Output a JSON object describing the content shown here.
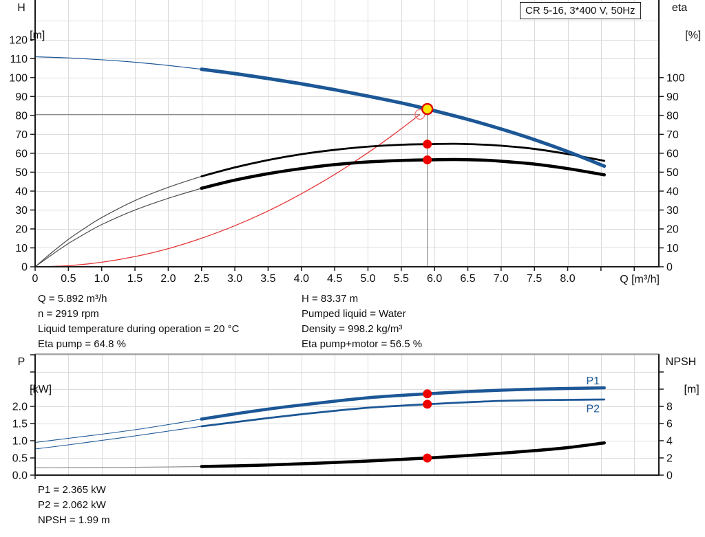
{
  "title_box": "CR 5-16, 3*400 V, 50Hz",
  "info_blocks": {
    "top_left": [
      "Q = 5.892 m³/h",
      "n = 2919 rpm",
      "Liquid temperature during operation = 20 °C",
      "Eta pump = 64.8 %"
    ],
    "top_right": [
      "H = 83.37 m",
      "Pumped liquid = Water",
      "Density = 998.2 kg/m³",
      "Eta pump+motor = 56.5 %"
    ],
    "bottom": [
      "P1 = 2.365 kW",
      "P2 = 2.062 kW",
      "NPSH = 1.99 m"
    ]
  },
  "colors": {
    "curve_blue": "#1c5796",
    "curve_black": "#000000",
    "curve_red": "#e53535",
    "dot_red": "#ee0000",
    "duty_fill": "#ffe600",
    "duty_ring": "#dd0000",
    "requested_ring": "#f47c7c",
    "duty_line": "#8c8c8c",
    "grid": "#dcdcdc",
    "axis": "#1a1a1a",
    "label": "#111111"
  },
  "chart_data": [
    {
      "type": "line",
      "title": "CR 5-16, 3*400 V, 50Hz",
      "x_axis": {
        "label": "Q [m³/h]",
        "range": [
          0,
          9.37
        ],
        "tick_step": 0.5,
        "tick_max": 9.0,
        "tick_labels": [
          "0",
          "0.5",
          "1.0",
          "1.5",
          "2.0",
          "2.5",
          "3.0",
          "3.5",
          "4.0",
          "4.5",
          "5.0",
          "5.5",
          "6.0",
          "6.5",
          "7.0",
          "7.5",
          "8.0"
        ]
      },
      "y_left": {
        "name": "H",
        "unit": "[m]",
        "range": [
          0,
          141
        ],
        "tick_step": 10,
        "tick_max": 120,
        "grid_max": 130,
        "tick_labels": [
          "0",
          "10",
          "20",
          "30",
          "40",
          "50",
          "60",
          "70",
          "80",
          "90",
          "100",
          "110",
          "120"
        ]
      },
      "y_right": {
        "name": "eta",
        "unit": "[%]",
        "range": [
          0,
          141
        ],
        "tick_step": 10,
        "tick_max": 100,
        "tick_labels": [
          "0",
          "10",
          "20",
          "30",
          "40",
          "50",
          "60",
          "70",
          "80",
          "90",
          "100"
        ]
      },
      "series": [
        {
          "name": "system-curve",
          "axis": "left",
          "color": "#e53535",
          "width": 1.3,
          "thick_from": null,
          "points": [
            [
              0,
              0
            ],
            [
              0.5,
              0.6
            ],
            [
              1,
              2.4
            ],
            [
              1.5,
              5.4
            ],
            [
              2,
              9.6
            ],
            [
              2.5,
              15.1
            ],
            [
              3,
              21.7
            ],
            [
              3.5,
              29.5
            ],
            [
              4,
              38.6
            ],
            [
              4.5,
              48.8
            ],
            [
              5,
              60.3
            ],
            [
              5.4,
              70.3
            ],
            [
              5.78,
              80.5
            ]
          ]
        },
        {
          "name": "eta-pump",
          "axis": "right",
          "color": "#000000",
          "thin_color": "#4d4d4d",
          "width": 2.8,
          "thin_width": 1.2,
          "thick_from": 2.5,
          "points": [
            [
              0,
              0
            ],
            [
              0.25,
              7.5
            ],
            [
              0.5,
              14.5
            ],
            [
              0.75,
              20.5
            ],
            [
              1,
              26
            ],
            [
              1.5,
              35
            ],
            [
              2,
              42
            ],
            [
              2.5,
              47.8
            ],
            [
              3,
              52.5
            ],
            [
              3.5,
              56.4
            ],
            [
              4,
              59.5
            ],
            [
              4.5,
              61.8
            ],
            [
              5,
              63.5
            ],
            [
              5.5,
              64.5
            ],
            [
              5.892,
              64.8
            ],
            [
              6.3,
              65
            ],
            [
              6.7,
              64.6
            ],
            [
              7,
              64
            ],
            [
              7.5,
              62.3
            ],
            [
              8,
              59.6
            ],
            [
              8.55,
              56
            ]
          ]
        },
        {
          "name": "eta-pump-motor",
          "axis": "right",
          "color": "#000000",
          "thin_color": "#4d4d4d",
          "width": 4.5,
          "thin_width": 1.2,
          "thick_from": 2.5,
          "points": [
            [
              0,
              0
            ],
            [
              0.25,
              6.3
            ],
            [
              0.5,
              12.3
            ],
            [
              0.75,
              17.5
            ],
            [
              1,
              22.3
            ],
            [
              1.5,
              30
            ],
            [
              2,
              36.2
            ],
            [
              2.5,
              41.5
            ],
            [
              3,
              45.8
            ],
            [
              3.5,
              49.2
            ],
            [
              4,
              51.9
            ],
            [
              4.5,
              54
            ],
            [
              5,
              55.4
            ],
            [
              5.5,
              56.2
            ],
            [
              5.892,
              56.5
            ],
            [
              6.3,
              56.7
            ],
            [
              6.7,
              56.4
            ],
            [
              7,
              55.8
            ],
            [
              7.5,
              54.3
            ],
            [
              8,
              51.9
            ],
            [
              8.55,
              48.6
            ]
          ]
        },
        {
          "name": "head",
          "axis": "left",
          "color": "#1c5796",
          "thin_color": "#1c5796",
          "width": 5,
          "thin_width": 1.2,
          "thick_from": 2.5,
          "points": [
            [
              0,
              111
            ],
            [
              0.5,
              110.4
            ],
            [
              1,
              109.4
            ],
            [
              1.5,
              108.1
            ],
            [
              2,
              106.4
            ],
            [
              2.5,
              104.4
            ],
            [
              3,
              102.1
            ],
            [
              3.5,
              99.5
            ],
            [
              4,
              96.7
            ],
            [
              4.5,
              93.6
            ],
            [
              5,
              90.2
            ],
            [
              5.5,
              86.6
            ],
            [
              5.892,
              83.37
            ],
            [
              6.5,
              77.9
            ],
            [
              7,
              72.8
            ],
            [
              7.5,
              67.2
            ],
            [
              8,
              60.9
            ],
            [
              8.55,
              53.2
            ]
          ]
        }
      ],
      "duty_lines": {
        "h_line": {
          "value": 80.5,
          "q_from": 0,
          "q_to": 5.78
        },
        "v_line": {
          "q": 5.892,
          "value_from": 84,
          "value_to": 0
        }
      },
      "markers": [
        {
          "type": "dot",
          "name": "eta-pump-duty-dot",
          "q": 5.892,
          "value": 64.8,
          "axis": "right",
          "r": 6.5
        },
        {
          "type": "dot",
          "name": "eta-pump-motor-duty-dot",
          "q": 5.892,
          "value": 56.5,
          "axis": "right",
          "r": 6.5
        },
        {
          "type": "open",
          "name": "requested-duty-marker",
          "q": 5.78,
          "value": 80.5,
          "axis": "left",
          "r": 7
        },
        {
          "type": "duty",
          "name": "duty-point-marker",
          "q": 5.892,
          "value": 83.37,
          "axis": "left",
          "r": 7.5
        }
      ],
      "curve_labels": []
    },
    {
      "type": "line",
      "title": "",
      "x_axis": {
        "label": "",
        "range": [
          0,
          9.37
        ],
        "tick_step": 0.5,
        "tick_max": 0,
        "tick_labels": []
      },
      "y_left": {
        "name": "P",
        "unit": "[kW]",
        "range": [
          0,
          3.52
        ],
        "tick_step": 0.5,
        "tick_max": 3.5,
        "grid_max": 3.5,
        "tick_labels": [
          "0.0",
          "0.5",
          "1.0",
          "1.5",
          "2.0"
        ]
      },
      "y_right": {
        "name": "NPSH",
        "unit": "[m]",
        "range": [
          0,
          14.08
        ],
        "tick_step": 2,
        "tick_max": 12,
        "tick_labels": [
          "0",
          "2",
          "4",
          "6",
          "8"
        ]
      },
      "series": [
        {
          "name": "npsh",
          "axis": "right",
          "color": "#000000",
          "thin_color": "#8c8c8c",
          "width": 4.5,
          "thin_width": 1.2,
          "thick_from": 2.5,
          "points": [
            [
              0,
              0.85
            ],
            [
              0.5,
              0.86
            ],
            [
              1,
              0.88
            ],
            [
              1.5,
              0.91
            ],
            [
              2,
              0.95
            ],
            [
              2.5,
              1.0
            ],
            [
              3,
              1.08
            ],
            [
              3.5,
              1.18
            ],
            [
              4,
              1.32
            ],
            [
              4.5,
              1.47
            ],
            [
              5,
              1.64
            ],
            [
              5.5,
              1.83
            ],
            [
              5.892,
              1.99
            ],
            [
              6.5,
              2.28
            ],
            [
              7,
              2.55
            ],
            [
              7.5,
              2.85
            ],
            [
              8,
              3.2
            ],
            [
              8.55,
              3.75
            ]
          ]
        },
        {
          "name": "p2",
          "axis": "left",
          "color": "#1c5796",
          "thin_color": "#1c5796",
          "width": 2.8,
          "thin_width": 1.1,
          "thick_from": 2.5,
          "points": [
            [
              0,
              0.76
            ],
            [
              0.5,
              0.88
            ],
            [
              1,
              1.01
            ],
            [
              1.5,
              1.14
            ],
            [
              2,
              1.28
            ],
            [
              2.5,
              1.42
            ],
            [
              3,
              1.54
            ],
            [
              3.5,
              1.66
            ],
            [
              4,
              1.77
            ],
            [
              4.5,
              1.87
            ],
            [
              5,
              1.96
            ],
            [
              5.5,
              2.02
            ],
            [
              5.892,
              2.062
            ],
            [
              6.5,
              2.12
            ],
            [
              7,
              2.16
            ],
            [
              7.5,
              2.18
            ],
            [
              8,
              2.19
            ],
            [
              8.55,
              2.2
            ]
          ]
        },
        {
          "name": "p1",
          "axis": "left",
          "color": "#1c5796",
          "thin_color": "#1c5796",
          "width": 4.5,
          "thin_width": 1.1,
          "thick_from": 2.5,
          "points": [
            [
              0,
              0.95
            ],
            [
              0.5,
              1.07
            ],
            [
              1,
              1.19
            ],
            [
              1.5,
              1.32
            ],
            [
              2,
              1.47
            ],
            [
              2.5,
              1.63
            ],
            [
              3,
              1.78
            ],
            [
              3.5,
              1.92
            ],
            [
              4,
              2.04
            ],
            [
              4.5,
              2.15
            ],
            [
              5,
              2.25
            ],
            [
              5.5,
              2.32
            ],
            [
              5.892,
              2.365
            ],
            [
              6.5,
              2.43
            ],
            [
              7,
              2.47
            ],
            [
              7.5,
              2.5
            ],
            [
              8,
              2.52
            ],
            [
              8.55,
              2.54
            ]
          ]
        }
      ],
      "duty_lines": null,
      "markers": [
        {
          "type": "dot",
          "name": "p1-duty-dot",
          "q": 5.892,
          "value": 2.365,
          "axis": "left",
          "r": 6.5
        },
        {
          "type": "dot",
          "name": "p2-duty-dot",
          "q": 5.892,
          "value": 2.062,
          "axis": "left",
          "r": 6.5
        },
        {
          "type": "dot",
          "name": "npsh-duty-dot",
          "q": 5.892,
          "value": 1.99,
          "axis": "right",
          "r": 6.5
        }
      ],
      "curve_labels": [
        {
          "text": "P1",
          "q": 8.38,
          "value": 2.76,
          "axis": "left"
        },
        {
          "text": "P2",
          "q": 8.38,
          "value": 1.95,
          "axis": "left"
        }
      ]
    }
  ]
}
